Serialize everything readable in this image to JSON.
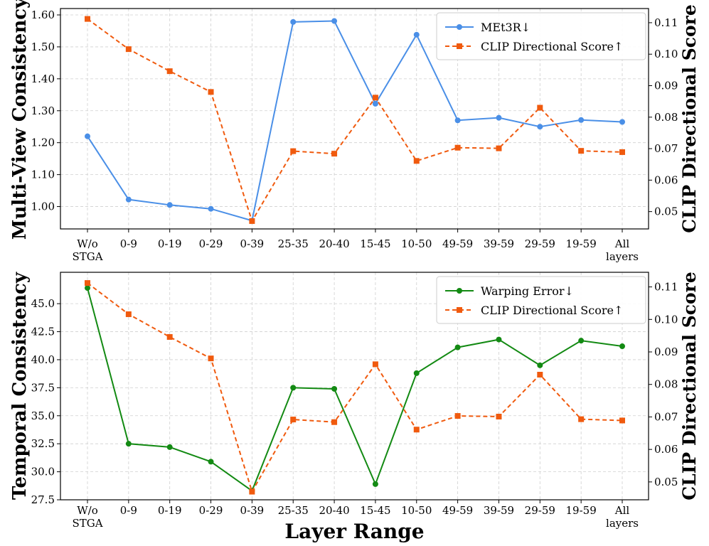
{
  "chart_data": [
    {
      "type": "line",
      "categories": [
        "W/o\nSTGA",
        "0-9",
        "0-19",
        "0-29",
        "0-39",
        "25-35",
        "20-40",
        "15-45",
        "10-50",
        "49-59",
        "39-59",
        "29-59",
        "19-59",
        "All\nlayers"
      ],
      "ylabel": "Multi-View Consistency",
      "y2label": "CLIP Directional Score",
      "ylim": [
        0.93,
        1.62
      ],
      "y2lim": [
        0.0445,
        0.1145
      ],
      "yticks": [
        "1.00",
        "1.10",
        "1.20",
        "1.30",
        "1.40",
        "1.50",
        "1.60"
      ],
      "y2ticks": [
        "0.05",
        "0.06",
        "0.07",
        "0.08",
        "0.09",
        "0.10",
        "0.11"
      ],
      "grid": true,
      "legend_position": "top-right",
      "series": [
        {
          "name": "MEt3R↓",
          "axis": "left",
          "color": "#4a8fe7",
          "marker": "circle",
          "style": "solid",
          "values": [
            1.22,
            1.022,
            1.005,
            0.993,
            0.956,
            1.578,
            1.581,
            1.322,
            1.538,
            1.27,
            1.278,
            1.25,
            1.271,
            1.265
          ]
        },
        {
          "name": "CLIP Directional Score↑",
          "axis": "right",
          "color": "#f05a0e",
          "marker": "square",
          "style": "dashed",
          "values": [
            0.1112,
            0.1016,
            0.0946,
            0.088,
            0.047,
            0.0692,
            0.0684,
            0.0862,
            0.0661,
            0.0703,
            0.0701,
            0.083,
            0.0693,
            0.0689
          ]
        }
      ]
    },
    {
      "type": "line",
      "categories": [
        "W/o\nSTGA",
        "0-9",
        "0-19",
        "0-29",
        "0-39",
        "25-35",
        "20-40",
        "15-45",
        "10-50",
        "49-59",
        "39-59",
        "29-59",
        "19-59",
        "All\nlayers"
      ],
      "xlabel": "Layer Range",
      "ylabel": "Temporal Consistency",
      "y2label": "CLIP Directional Score",
      "ylim": [
        27.5,
        47.8
      ],
      "y2lim": [
        0.0445,
        0.1145
      ],
      "yticks": [
        "27.5",
        "30.0",
        "32.5",
        "35.0",
        "37.5",
        "40.0",
        "42.5",
        "45.0"
      ],
      "y2ticks": [
        "0.05",
        "0.06",
        "0.07",
        "0.08",
        "0.09",
        "0.10",
        "0.11"
      ],
      "grid": true,
      "legend_position": "top-right",
      "series": [
        {
          "name": "Warping Error↓",
          "axis": "left",
          "color": "#138a13",
          "marker": "circle",
          "style": "solid",
          "values": [
            46.4,
            32.5,
            32.2,
            30.9,
            28.3,
            37.5,
            37.4,
            28.9,
            38.8,
            41.1,
            41.8,
            39.5,
            41.7,
            41.2
          ]
        },
        {
          "name": "CLIP Directional Score↑",
          "axis": "right",
          "color": "#f05a0e",
          "marker": "square",
          "style": "dashed",
          "values": [
            0.1112,
            0.1016,
            0.0946,
            0.088,
            0.047,
            0.0692,
            0.0684,
            0.0862,
            0.0661,
            0.0703,
            0.0701,
            0.083,
            0.0693,
            0.0689
          ]
        }
      ]
    }
  ]
}
